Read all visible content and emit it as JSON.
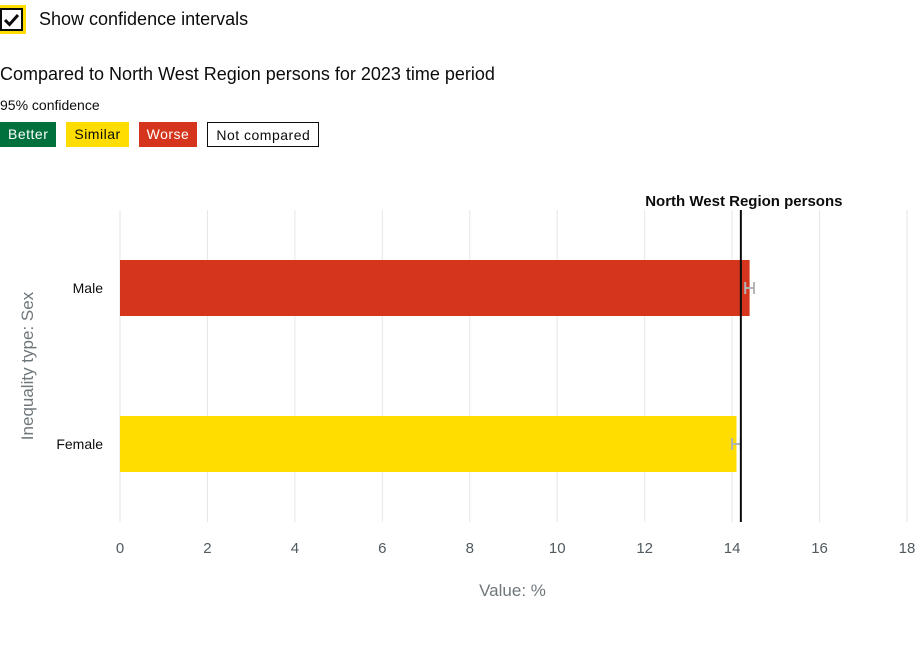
{
  "controls": {
    "ci_checkbox_label": "Show confidence intervals",
    "ci_checked": true
  },
  "benchmark": {
    "title": "Compared to North West Region persons for 2023 time period",
    "confidence": "95% confidence"
  },
  "legend": {
    "better": "Better",
    "similar": "Similar",
    "worse": "Worse",
    "not_compared": "Not compared"
  },
  "colors": {
    "better": "#00703c",
    "similar": "#ffdd00",
    "worse": "#d4351c",
    "not_compared": "#ffffff",
    "benchmark_line": "#0b0c0c",
    "error_bar": "#b1b4b6",
    "grid": "#e6e6e6"
  },
  "chart_data": {
    "type": "bar",
    "orientation": "horizontal",
    "categories": [
      "Male",
      "Female"
    ],
    "values": [
      14.4,
      14.1
    ],
    "ci": [
      [
        14.3,
        14.5
      ],
      [
        14.0,
        14.2
      ]
    ],
    "comparison": [
      "worse",
      "similar"
    ],
    "benchmark": {
      "label": "North West Region persons",
      "value": 14.2
    },
    "xlabel": "Value: %",
    "ylabel": "Inequality type: Sex",
    "xlim": [
      0,
      18
    ],
    "xticks": [
      0,
      2,
      4,
      6,
      8,
      10,
      12,
      14,
      16,
      18
    ],
    "grid": true
  }
}
